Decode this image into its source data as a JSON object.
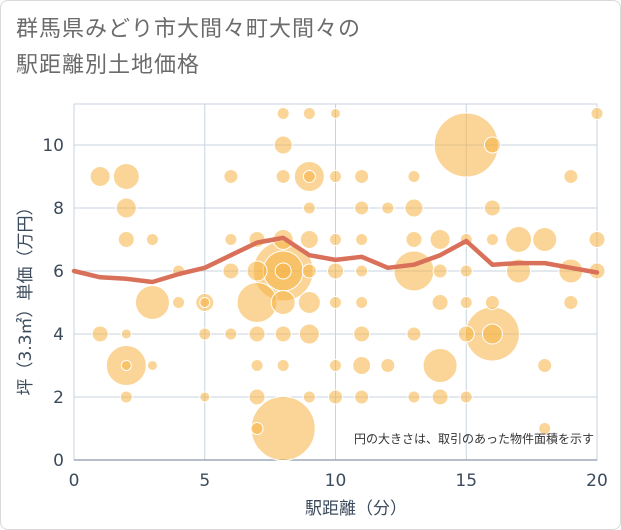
{
  "title_line1": "群馬県みどり市大間々町大間々の",
  "title_line2": "駅距離別土地価格",
  "note": "円の大きさは、取引のあった物件面積を示す",
  "colors": {
    "bubble": "#f5b342",
    "line": "#d9705a",
    "grid": "#c9d3e0",
    "axis": "#3c4b5c"
  },
  "chart_data": {
    "type": "scatter",
    "xlabel": "駅距離（分）",
    "ylabel": "坪（3.3㎡）単価（万円）",
    "xlim": [
      0,
      20
    ],
    "ylim": [
      0,
      11.3
    ],
    "x_ticks": [
      "0",
      "5",
      "10",
      "15",
      "20"
    ],
    "y_ticks": [
      "0",
      "2",
      "4",
      "6",
      "8",
      "10"
    ],
    "grid": true,
    "series": [
      {
        "type": "bubble",
        "points": [
          {
            "x": 1,
            "y": 9,
            "s": 10
          },
          {
            "x": 2,
            "y": 9,
            "s": 13
          },
          {
            "x": 2,
            "y": 8,
            "s": 10
          },
          {
            "x": 2,
            "y": 7,
            "s": 8
          },
          {
            "x": 3,
            "y": 7,
            "s": 6
          },
          {
            "x": 1,
            "y": 4,
            "s": 8
          },
          {
            "x": 2,
            "y": 4,
            "s": 5
          },
          {
            "x": 2,
            "y": 3,
            "s": 20
          },
          {
            "x": 2,
            "y": 3,
            "s": 5
          },
          {
            "x": 2,
            "y": 2,
            "s": 6
          },
          {
            "x": 3,
            "y": 3,
            "s": 5
          },
          {
            "x": 3,
            "y": 5,
            "s": 17
          },
          {
            "x": 4,
            "y": 5,
            "s": 6
          },
          {
            "x": 4,
            "y": 6,
            "s": 6
          },
          {
            "x": 5,
            "y": 5,
            "s": 9
          },
          {
            "x": 5,
            "y": 5,
            "s": 5
          },
          {
            "x": 5,
            "y": 4,
            "s": 6
          },
          {
            "x": 5,
            "y": 2,
            "s": 5
          },
          {
            "x": 6,
            "y": 9,
            "s": 7
          },
          {
            "x": 6,
            "y": 7,
            "s": 6
          },
          {
            "x": 6,
            "y": 6,
            "s": 8
          },
          {
            "x": 6,
            "y": 4,
            "s": 6
          },
          {
            "x": 7,
            "y": 7,
            "s": 8
          },
          {
            "x": 7,
            "y": 6,
            "s": 10
          },
          {
            "x": 7,
            "y": 5,
            "s": 20
          },
          {
            "x": 7,
            "y": 4,
            "s": 8
          },
          {
            "x": 7,
            "y": 3,
            "s": 6
          },
          {
            "x": 7,
            "y": 2,
            "s": 8
          },
          {
            "x": 7,
            "y": 1,
            "s": 6
          },
          {
            "x": 8,
            "y": 11,
            "s": 6
          },
          {
            "x": 8,
            "y": 10,
            "s": 9
          },
          {
            "x": 8,
            "y": 9,
            "s": 7
          },
          {
            "x": 8,
            "y": 7,
            "s": 10
          },
          {
            "x": 8,
            "y": 6,
            "s": 30
          },
          {
            "x": 8,
            "y": 6,
            "s": 20
          },
          {
            "x": 8,
            "y": 6,
            "s": 8
          },
          {
            "x": 8,
            "y": 5,
            "s": 12
          },
          {
            "x": 8,
            "y": 4,
            "s": 8
          },
          {
            "x": 8,
            "y": 3,
            "s": 6
          },
          {
            "x": 8,
            "y": 1,
            "s": 32
          },
          {
            "x": 9,
            "y": 11,
            "s": 6
          },
          {
            "x": 9,
            "y": 9,
            "s": 15
          },
          {
            "x": 9,
            "y": 9,
            "s": 6
          },
          {
            "x": 9,
            "y": 8,
            "s": 6
          },
          {
            "x": 9,
            "y": 7,
            "s": 9
          },
          {
            "x": 9,
            "y": 6,
            "s": 7
          },
          {
            "x": 9,
            "y": 5,
            "s": 11
          },
          {
            "x": 9,
            "y": 4,
            "s": 10
          },
          {
            "x": 9,
            "y": 2,
            "s": 6
          },
          {
            "x": 10,
            "y": 11,
            "s": 5
          },
          {
            "x": 10,
            "y": 9,
            "s": 6
          },
          {
            "x": 10,
            "y": 7,
            "s": 6
          },
          {
            "x": 10,
            "y": 6,
            "s": 8
          },
          {
            "x": 10,
            "y": 5,
            "s": 6
          },
          {
            "x": 10,
            "y": 3,
            "s": 6
          },
          {
            "x": 10,
            "y": 2,
            "s": 7
          },
          {
            "x": 11,
            "y": 9,
            "s": 7
          },
          {
            "x": 11,
            "y": 8,
            "s": 7
          },
          {
            "x": 11,
            "y": 7,
            "s": 6
          },
          {
            "x": 11,
            "y": 6,
            "s": 6
          },
          {
            "x": 11,
            "y": 5,
            "s": 6
          },
          {
            "x": 11,
            "y": 4,
            "s": 8
          },
          {
            "x": 11,
            "y": 3,
            "s": 9
          },
          {
            "x": 11,
            "y": 2,
            "s": 7
          },
          {
            "x": 12,
            "y": 8,
            "s": 6
          },
          {
            "x": 12,
            "y": 3,
            "s": 7
          },
          {
            "x": 13,
            "y": 9,
            "s": 6
          },
          {
            "x": 13,
            "y": 8,
            "s": 9
          },
          {
            "x": 13,
            "y": 7,
            "s": 8
          },
          {
            "x": 13,
            "y": 6,
            "s": 20
          },
          {
            "x": 13,
            "y": 4,
            "s": 7
          },
          {
            "x": 13,
            "y": 2,
            "s": 6
          },
          {
            "x": 14,
            "y": 7,
            "s": 10
          },
          {
            "x": 14,
            "y": 6,
            "s": 7
          },
          {
            "x": 14,
            "y": 5,
            "s": 8
          },
          {
            "x": 14,
            "y": 3,
            "s": 17
          },
          {
            "x": 14,
            "y": 2,
            "s": 8
          },
          {
            "x": 15,
            "y": 10,
            "s": 32
          },
          {
            "x": 15,
            "y": 7,
            "s": 6
          },
          {
            "x": 15,
            "y": 6,
            "s": 6
          },
          {
            "x": 15,
            "y": 5,
            "s": 6
          },
          {
            "x": 15,
            "y": 4,
            "s": 8
          },
          {
            "x": 15,
            "y": 2,
            "s": 6
          },
          {
            "x": 16,
            "y": 10,
            "s": 8
          },
          {
            "x": 16,
            "y": 8,
            "s": 8
          },
          {
            "x": 16,
            "y": 7,
            "s": 6
          },
          {
            "x": 16,
            "y": 5,
            "s": 7
          },
          {
            "x": 16,
            "y": 4,
            "s": 27
          },
          {
            "x": 16,
            "y": 4,
            "s": 10
          },
          {
            "x": 17,
            "y": 7,
            "s": 13
          },
          {
            "x": 17,
            "y": 6,
            "s": 12
          },
          {
            "x": 18,
            "y": 7,
            "s": 12
          },
          {
            "x": 18,
            "y": 3,
            "s": 7
          },
          {
            "x": 18,
            "y": 1,
            "s": 6
          },
          {
            "x": 19,
            "y": 9,
            "s": 7
          },
          {
            "x": 19,
            "y": 6,
            "s": 12
          },
          {
            "x": 19,
            "y": 5,
            "s": 7
          },
          {
            "x": 20,
            "y": 11,
            "s": 6
          },
          {
            "x": 20,
            "y": 7,
            "s": 8
          },
          {
            "x": 20,
            "y": 6,
            "s": 8
          }
        ]
      },
      {
        "type": "line",
        "points": [
          {
            "x": 0,
            "y": 6.0
          },
          {
            "x": 1,
            "y": 5.8
          },
          {
            "x": 2,
            "y": 5.75
          },
          {
            "x": 3,
            "y": 5.65
          },
          {
            "x": 4,
            "y": 5.9
          },
          {
            "x": 5,
            "y": 6.1
          },
          {
            "x": 6,
            "y": 6.5
          },
          {
            "x": 7,
            "y": 6.9
          },
          {
            "x": 8,
            "y": 7.05
          },
          {
            "x": 9,
            "y": 6.5
          },
          {
            "x": 10,
            "y": 6.35
          },
          {
            "x": 11,
            "y": 6.45
          },
          {
            "x": 12,
            "y": 6.1
          },
          {
            "x": 13,
            "y": 6.2
          },
          {
            "x": 14,
            "y": 6.5
          },
          {
            "x": 15,
            "y": 6.95
          },
          {
            "x": 16,
            "y": 6.2
          },
          {
            "x": 17,
            "y": 6.25
          },
          {
            "x": 18,
            "y": 6.25
          },
          {
            "x": 19,
            "y": 6.1
          },
          {
            "x": 20,
            "y": 5.95
          }
        ]
      }
    ]
  }
}
